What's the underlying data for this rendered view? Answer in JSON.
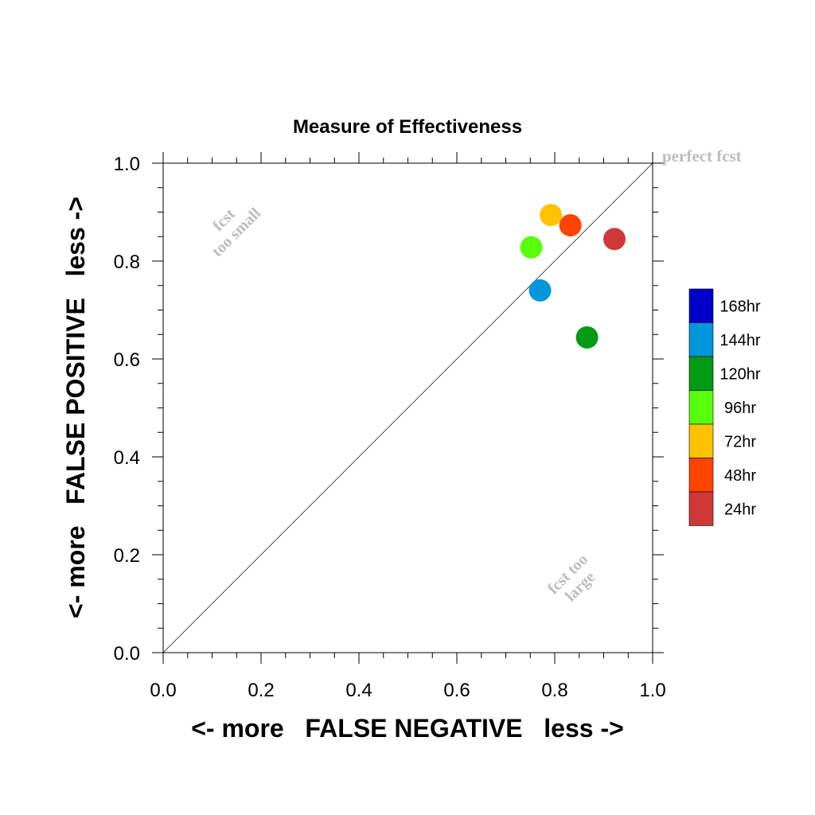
{
  "chart_data": {
    "type": "scatter",
    "title": "Measure of Effectiveness",
    "xlabel": "<- more   FALSE NEGATIVE   less ->",
    "ylabel": "<- more   FALSE POSITIVE   less ->",
    "xlim": [
      0,
      1
    ],
    "ylim": [
      0,
      1
    ],
    "xticks": [
      "0.0",
      "0.2",
      "0.4",
      "0.6",
      "0.8",
      "1.0"
    ],
    "yticks": [
      "0.0",
      "0.2",
      "0.4",
      "0.6",
      "0.8",
      "1.0"
    ],
    "grid": false,
    "legend_position": "right",
    "annotations": {
      "perfect": "perfect fcst",
      "small": [
        "fcst",
        "too small"
      ],
      "large": [
        "fcst too",
        "large"
      ]
    },
    "legend": [
      {
        "label": "168hr",
        "color": "#0000c8"
      },
      {
        "label": "144hr",
        "color": "#0096dc"
      },
      {
        "label": "120hr",
        "color": "#009a14"
      },
      {
        "label": "96hr",
        "color": "#58ff0a"
      },
      {
        "label": "72hr",
        "color": "#ffc200"
      },
      {
        "label": "48hr",
        "color": "#ff4400"
      },
      {
        "label": "24hr",
        "color": "#d03838"
      }
    ],
    "points": [
      {
        "series": "24hr",
        "x": 0.922,
        "y": 0.845,
        "color": "#d03838"
      },
      {
        "series": "48hr",
        "x": 0.832,
        "y": 0.873,
        "color": "#ff4400"
      },
      {
        "series": "72hr",
        "x": 0.792,
        "y": 0.894,
        "color": "#ffc200"
      },
      {
        "series": "96hr",
        "x": 0.752,
        "y": 0.828,
        "color": "#58ff0a"
      },
      {
        "series": "120hr",
        "x": 0.866,
        "y": 0.644,
        "color": "#009a14"
      },
      {
        "series": "144hr",
        "x": 0.77,
        "y": 0.74,
        "color": "#0096dc"
      }
    ]
  }
}
